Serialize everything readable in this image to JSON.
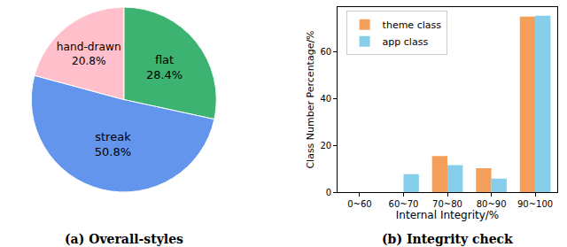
{
  "chart_data": [
    {
      "type": "pie",
      "title": "(a) Overall-styles",
      "categories": [
        "flat",
        "streak",
        "hand-drawn"
      ],
      "values": [
        28.4,
        50.8,
        20.8
      ],
      "value_labels": [
        "28.4%",
        "50.8%",
        "20.8%"
      ],
      "colors": [
        "#3cb371",
        "#6495ed",
        "#ffc0cb"
      ],
      "data_labels": true
    },
    {
      "type": "bar",
      "title": "(b) Integrity check",
      "x_label": "Internal Integrity/%",
      "y_label": "Class Number Percentage/%",
      "categories": [
        "0~60",
        "60~70",
        "70~80",
        "80~90",
        "90~100"
      ],
      "series": [
        {
          "name": "theme class",
          "color": "#f5a05a",
          "values": [
            0,
            0,
            15.4,
            10.2,
            74.9
          ]
        },
        {
          "name": "app class",
          "color": "#87ceeb",
          "values": [
            0,
            7.7,
            11.5,
            5.8,
            75.3
          ]
        }
      ],
      "ylim": [
        0,
        79
      ],
      "yticks": [
        0,
        20,
        40,
        60
      ],
      "legend": "upper left",
      "grid": false
    }
  ]
}
